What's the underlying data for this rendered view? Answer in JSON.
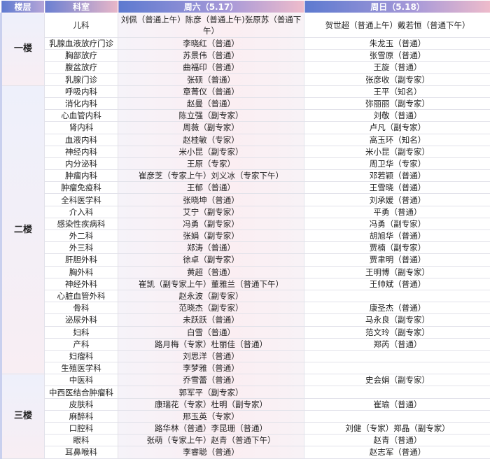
{
  "header": {
    "floor": "楼层",
    "dept": "科室",
    "sat": "周六（5.17）",
    "sun": "周日（5.18）"
  },
  "floors": [
    {
      "name": "一楼",
      "rows": [
        {
          "dept": "儿科",
          "sat": "刘佩（普通上午）陈彦（普通上午)张原苏（普通下午）",
          "sun": "贺世超（普通上午）戴若恒（普通下午）"
        },
        {
          "dept": "乳腺血液放疗门诊",
          "sat": "李晓红（普通）",
          "sun": "朱龙玉（普通）"
        },
        {
          "dept": "胸部放疗",
          "sat": "苏景伟（普通）",
          "sun": "张雪原（普通）"
        },
        {
          "dept": "腹盆放疗",
          "sat": "曲福印（普通）",
          "sun": "王旋（普通）"
        },
        {
          "dept": "乳腺门诊",
          "sat": "张硕（普通）",
          "sun": "张彦收（副专家）"
        }
      ]
    },
    {
      "name": "二楼",
      "rows": [
        {
          "dept": "呼吸内科",
          "sat": "章菁仪（普通）",
          "sun": "王平（知名）"
        },
        {
          "dept": "消化内科",
          "sat": "赵曼（普通）",
          "sun": "弥丽丽（副专家）"
        },
        {
          "dept": "心血管内科",
          "sat": "陈立强（副专家）",
          "sun": "刘敬（普通）"
        },
        {
          "dept": "肾内科",
          "sat": "周薇（副专家）",
          "sun": "卢凡（副专家）"
        },
        {
          "dept": "血液内科",
          "sat": "赵桂敏（专家）",
          "sun": "高玉环（知名）"
        },
        {
          "dept": "神经内科",
          "sat": "米小昆（副专家）",
          "sun": "米小昆（副专家）"
        },
        {
          "dept": "内分泌科",
          "sat": "王原（专家）",
          "sun": "周卫华（专家）"
        },
        {
          "dept": "肿瘤内科",
          "sat": "崔彦芝（专家上午）刘义冰（专家下午）",
          "sun": "邓若颖（普通）"
        },
        {
          "dept": "肿瘤免疫科",
          "sat": "王郁（普通）",
          "sun": "王雪晓（普通）"
        },
        {
          "dept": "全科医学科",
          "sat": "张晓坤（普通）",
          "sun": "刘承媛（普通）"
        },
        {
          "dept": "介入科",
          "sat": "艾宁（副专家）",
          "sun": "平勇（普通）"
        },
        {
          "dept": "感染性疾病科",
          "sat": "冯勇（副专家）",
          "sun": "冯勇（副专家）"
        },
        {
          "dept": "外二科",
          "sat": "张娟（副专家）",
          "sun": "胡旭华（普通）"
        },
        {
          "dept": "外三科",
          "sat": "郑涛（普通）",
          "sun": "贾楠（副专家）"
        },
        {
          "dept": "肝胆外科",
          "sat": "徐卓（副专家）",
          "sun": "贾聿明（普通）"
        },
        {
          "dept": "胸外科",
          "sat": "黄超（普通）",
          "sun": "王明博（副专家）"
        },
        {
          "dept": "神经外科",
          "sat": "崔凯（副专家上午）董雅兰（普通下午）",
          "sun": "王帅斌（普通）"
        },
        {
          "dept": "心脏血管外科",
          "sat": "赵永波（副专家）",
          "sun": ""
        },
        {
          "dept": "骨科",
          "sat": "范晓杰（副专家）",
          "sun": "康圣杰（普通）"
        },
        {
          "dept": "泌尿外科",
          "sat": "未跃跃（普通）",
          "sun": "马永良（副专家）"
        },
        {
          "dept": "妇科",
          "sat": "白雪（普通）",
          "sun": "范文玲（副专家）"
        },
        {
          "dept": "产科",
          "sat": "路月梅（专家）杜丽佳（普通）",
          "sun": "郑芮（普通）"
        },
        {
          "dept": "妇瘤科",
          "sat": "刘思洋（普通）",
          "sun": ""
        },
        {
          "dept": "生殖医学科",
          "sat": "李梦雅（普通）",
          "sun": ""
        }
      ]
    },
    {
      "name": "三楼",
      "rows": [
        {
          "dept": "中医科",
          "sat": "乔雪蕾（普通）",
          "sun": "史会娟（副专家）"
        },
        {
          "dept": "中西医结合肿瘤科",
          "sat": "郭军平（副专家）",
          "sun": ""
        },
        {
          "dept": "皮肤科",
          "sat": "康瑞花（专家）杜明（副专家）",
          "sun": "崔瑜（普通）"
        },
        {
          "dept": "麻醉科",
          "sat": "邢玉英（专家）",
          "sun": ""
        },
        {
          "dept": "口腔科",
          "sat": "路华林（普通）李昆珊（普通）",
          "sun": "刘健（专家）郑晶（副专家）"
        },
        {
          "dept": "眼科",
          "sat": "张萌（专家上午）赵青（普通下午）",
          "sun": "赵青（普通）"
        },
        {
          "dept": "耳鼻喉科",
          "sat": "李睿聪（普通）",
          "sun": "赵志军（普通）"
        }
      ]
    }
  ]
}
